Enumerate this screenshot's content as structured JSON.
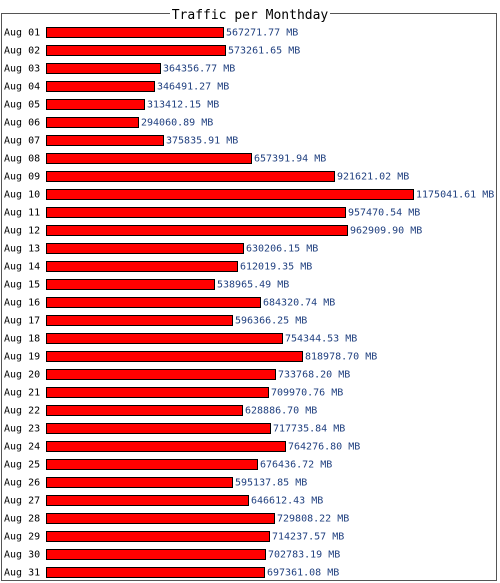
{
  "chart_data": {
    "type": "bar",
    "orientation": "horizontal",
    "title": "Traffic per Monthday",
    "categories": [
      "Aug 01",
      "Aug 02",
      "Aug 03",
      "Aug 04",
      "Aug 05",
      "Aug 06",
      "Aug 07",
      "Aug 08",
      "Aug 09",
      "Aug 10",
      "Aug 11",
      "Aug 12",
      "Aug 13",
      "Aug 14",
      "Aug 15",
      "Aug 16",
      "Aug 17",
      "Aug 18",
      "Aug 19",
      "Aug 20",
      "Aug 21",
      "Aug 22",
      "Aug 23",
      "Aug 24",
      "Aug 25",
      "Aug 26",
      "Aug 27",
      "Aug 28",
      "Aug 29",
      "Aug 30",
      "Aug 31"
    ],
    "values": [
      567271.77,
      573261.65,
      364356.77,
      346491.27,
      313412.15,
      294060.89,
      375835.91,
      657391.94,
      921621.02,
      1175041.61,
      957470.54,
      962909.9,
      630206.15,
      612019.35,
      538965.49,
      684320.74,
      596366.25,
      754344.53,
      818978.7,
      733768.2,
      709970.76,
      628886.7,
      717735.84,
      764276.8,
      676436.72,
      595137.85,
      646612.43,
      729808.22,
      714237.57,
      702783.19,
      697361.08
    ],
    "data_labels": [
      "567271.77 MB",
      "573261.65 MB",
      "364356.77 MB",
      "346491.27 MB",
      "313412.15 MB",
      "294060.89 MB",
      "375835.91 MB",
      "657391.94 MB",
      "921621.02 MB",
      "1175041.61 MB",
      "957470.54 MB",
      "962909.90 MB",
      "630206.15 MB",
      "612019.35 MB",
      "538965.49 MB",
      "684320.74 MB",
      "596366.25 MB",
      "754344.53 MB",
      "818978.70 MB",
      "733768.20 MB",
      "709970.76 MB",
      "628886.70 MB",
      "717735.84 MB",
      "764276.80 MB",
      "676436.72 MB",
      "595137.85 MB",
      "646612.43 MB",
      "729808.22 MB",
      "714237.57 MB",
      "702783.19 MB",
      "697361.08 MB"
    ],
    "unit": "MB",
    "xlim": [
      0,
      1175041.61
    ],
    "grid": false,
    "legend": "none",
    "bar_color": "#ff0000",
    "bar_outline_color": "#000000",
    "label_color": "#1f3f7f"
  }
}
